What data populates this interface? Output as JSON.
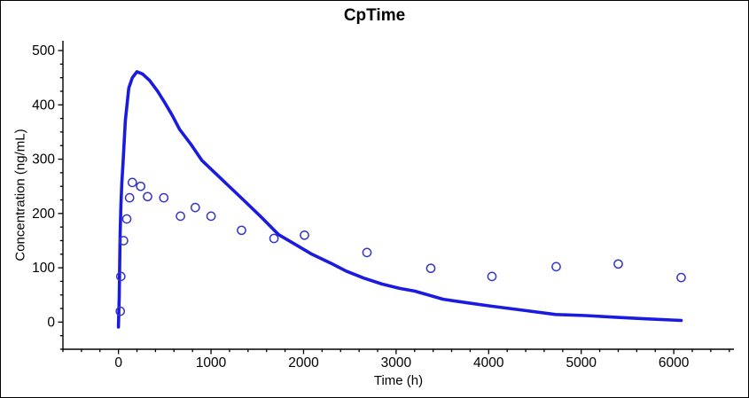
{
  "window": {
    "background": "#ffffff",
    "border_color": "#000000"
  },
  "chart_data": {
    "type": "line",
    "title": "CpTime",
    "xlabel": "Time (h)",
    "ylabel": "Concentration (ng/mL)",
    "xlim": [
      -600,
      6650
    ],
    "ylim": [
      -50,
      518
    ],
    "x_major_ticks": [
      0,
      1000,
      2000,
      3000,
      4000,
      5000,
      6000
    ],
    "x_minor_step": 200,
    "y_major_ticks": [
      0,
      100,
      200,
      300,
      400,
      500
    ],
    "y_minor_step": 25,
    "grid": false,
    "legend_position": "none",
    "colors": {
      "axis": "#000000",
      "text": "#000000",
      "line_series": "#1b1be0",
      "scatter_series": "#3636c8",
      "background": "#ffffff"
    },
    "series": [
      {
        "name": "predicted-concentration-curve",
        "type": "line",
        "color": "#1b1be0",
        "stroke_width": 3.6,
        "points": [
          [
            0,
            -9
          ],
          [
            8,
            45
          ],
          [
            13,
            105
          ],
          [
            18,
            160
          ],
          [
            26,
            215
          ],
          [
            36,
            255
          ],
          [
            48,
            290
          ],
          [
            74,
            371
          ],
          [
            112,
            431
          ],
          [
            150,
            450
          ],
          [
            200,
            461
          ],
          [
            260,
            457
          ],
          [
            336,
            445
          ],
          [
            420,
            426
          ],
          [
            500,
            404
          ],
          [
            580,
            381
          ],
          [
            660,
            355
          ],
          [
            780,
            328
          ],
          [
            900,
            298
          ],
          [
            1140,
            259
          ],
          [
            1375,
            221
          ],
          [
            1550,
            192
          ],
          [
            1730,
            161
          ],
          [
            1900,
            144
          ],
          [
            2080,
            126
          ],
          [
            2300,
            108
          ],
          [
            2460,
            94
          ],
          [
            2650,
            81
          ],
          [
            2850,
            70
          ],
          [
            3040,
            62
          ],
          [
            3200,
            57
          ],
          [
            3510,
            42
          ],
          [
            3750,
            36
          ],
          [
            4000,
            30
          ],
          [
            4410,
            21
          ],
          [
            4725,
            14
          ],
          [
            5050,
            12
          ],
          [
            5375,
            9
          ],
          [
            5700,
            6
          ],
          [
            6080,
            3
          ]
        ]
      },
      {
        "name": "observed-concentration-points",
        "type": "scatter",
        "marker": "open-circle",
        "color": "#3636c8",
        "radius": 4.6,
        "stroke_width": 1.5,
        "points": [
          [
            20,
            20
          ],
          [
            25,
            84
          ],
          [
            55,
            150
          ],
          [
            90,
            190
          ],
          [
            120,
            229
          ],
          [
            150,
            257
          ],
          [
            240,
            250
          ],
          [
            315,
            231
          ],
          [
            490,
            229
          ],
          [
            670,
            195
          ],
          [
            830,
            211
          ],
          [
            1000,
            195
          ],
          [
            1330,
            169
          ],
          [
            1680,
            154
          ],
          [
            2010,
            160
          ],
          [
            2685,
            128
          ],
          [
            3375,
            99
          ],
          [
            4035,
            84
          ],
          [
            4730,
            102
          ],
          [
            5400,
            107
          ],
          [
            6080,
            82
          ]
        ]
      }
    ]
  }
}
